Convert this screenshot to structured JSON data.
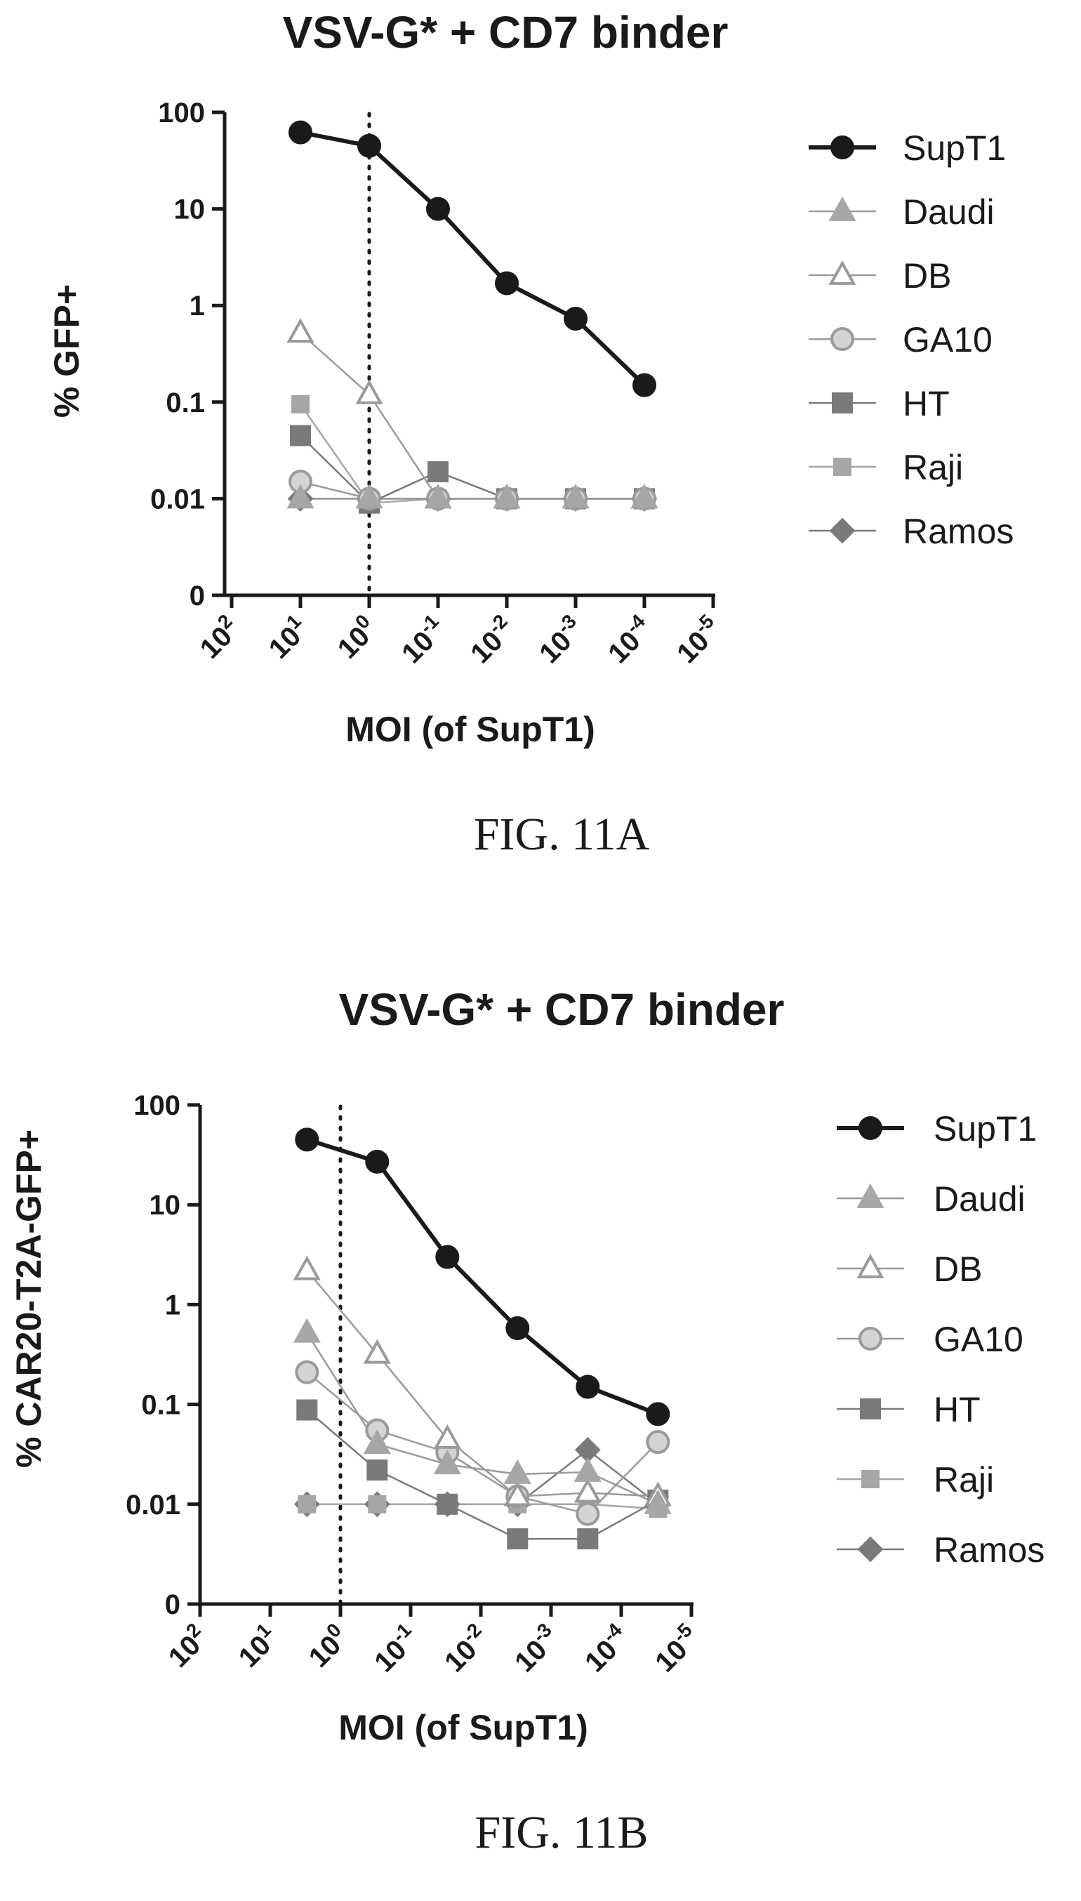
{
  "chart_data": [
    {
      "type": "line",
      "title": "VSV-G* + CD7 binder",
      "xlabel": "MOI (of SupT1)",
      "ylabel": "% GFP+",
      "caption": "FIG. 11A",
      "x_scale": "log",
      "x_reversed": true,
      "x_ticks": [
        "10^2",
        "10^1",
        "10^0",
        "10^-1",
        "10^-2",
        "10^-3",
        "10^-4",
        "10^-5"
      ],
      "x_ticks_value": [
        100,
        10,
        1,
        0.1,
        0.01,
        0.001,
        0.0001,
        1e-05
      ],
      "y_scale": "log",
      "y_ticks": [
        "100",
        "10",
        "1",
        "0.1",
        "0.01",
        "0"
      ],
      "y_ticks_value": [
        100,
        10,
        1,
        0.1,
        0.01,
        0.001
      ],
      "vline_x": 1,
      "legend_position": "right",
      "series": [
        {
          "name": "SupT1",
          "x": [
            10,
            1,
            0.1,
            0.01,
            0.001,
            0.0001
          ],
          "y": [
            62,
            45,
            10,
            1.7,
            0.73,
            0.15
          ]
        },
        {
          "name": "Daudi",
          "x": [
            10,
            1,
            0.1,
            0.01,
            0.001,
            0.0001
          ],
          "y": [
            0.01,
            0.01,
            0.01,
            0.01,
            0.01,
            0.01
          ]
        },
        {
          "name": "DB",
          "x": [
            10,
            1,
            0.1,
            0.01,
            0.001,
            0.0001
          ],
          "y": [
            0.52,
            0.12,
            0.01,
            0.01,
            0.01,
            0.01
          ]
        },
        {
          "name": "GA10",
          "x": [
            10,
            1,
            0.1,
            0.01,
            0.001,
            0.0001
          ],
          "y": [
            0.015,
            0.01,
            0.01,
            0.01,
            0.01,
            0.01
          ]
        },
        {
          "name": "HT",
          "x": [
            10,
            1,
            0.1,
            0.01,
            0.001,
            0.0001
          ],
          "y": [
            0.045,
            0.009,
            0.019,
            0.01,
            0.01,
            0.01
          ]
        },
        {
          "name": "Raji",
          "x": [
            10,
            1,
            0.1,
            0.01,
            0.001,
            0.0001
          ],
          "y": [
            0.095,
            0.009,
            0.01,
            0.01,
            0.01,
            0.01
          ]
        },
        {
          "name": "Ramos",
          "x": [
            10,
            1,
            0.1,
            0.01,
            0.001,
            0.0001
          ],
          "y": [
            0.01,
            0.01,
            0.01,
            0.01,
            0.01,
            0.01
          ]
        }
      ]
    },
    {
      "type": "line",
      "title": "VSV-G* + CD7 binder",
      "xlabel": "MOI (of SupT1)",
      "ylabel": "% CAR20-T2A-GFP+",
      "caption": "FIG. 11B",
      "x_scale": "log",
      "x_reversed": true,
      "x_ticks": [
        "10^2",
        "10^1",
        "10^0",
        "10^-1",
        "10^-2",
        "10^-3",
        "10^-4",
        "10^-5"
      ],
      "x_ticks_value": [
        100,
        10,
        1,
        0.1,
        0.01,
        0.001,
        0.0001,
        1e-05
      ],
      "y_scale": "log",
      "y_ticks": [
        "100",
        "10",
        "1",
        "0.1",
        "0.01",
        "0"
      ],
      "y_ticks_value": [
        100,
        10,
        1,
        0.1,
        0.01,
        0.001
      ],
      "vline_x": 1,
      "legend_position": "right",
      "series": [
        {
          "name": "SupT1",
          "x": [
            3,
            0.3,
            0.03,
            0.003,
            0.0003,
            3e-05
          ],
          "y": [
            45,
            27,
            3,
            0.58,
            0.15,
            0.08
          ]
        },
        {
          "name": "Daudi",
          "x": [
            3,
            0.3,
            0.03,
            0.003,
            0.0003,
            3e-05
          ],
          "y": [
            0.52,
            0.04,
            0.025,
            0.02,
            0.021,
            0.01
          ]
        },
        {
          "name": "DB",
          "x": [
            3,
            0.3,
            0.03,
            0.003,
            0.0003,
            3e-05
          ],
          "y": [
            2.2,
            0.32,
            0.045,
            0.012,
            0.013,
            0.012
          ]
        },
        {
          "name": "GA10",
          "x": [
            3,
            0.3,
            0.03,
            0.003,
            0.0003,
            3e-05
          ],
          "y": [
            0.21,
            0.055,
            0.033,
            0.012,
            0.008,
            0.042
          ]
        },
        {
          "name": "HT",
          "x": [
            3,
            0.3,
            0.03,
            0.003,
            0.0003,
            3e-05
          ],
          "y": [
            0.088,
            0.022,
            0.01,
            0.0045,
            0.0045,
            0.011
          ]
        },
        {
          "name": "Raji",
          "x": [
            3,
            0.3,
            0.03,
            0.003,
            0.0003,
            3e-05
          ],
          "y": [
            0.01,
            0.01,
            0.01,
            0.01,
            0.01,
            0.009
          ]
        },
        {
          "name": "Ramos",
          "x": [
            3,
            0.3,
            0.03,
            0.003,
            0.0003,
            3e-05
          ],
          "y": [
            0.01,
            0.01,
            0.01,
            0.01,
            0.035,
            0.01
          ]
        }
      ]
    }
  ],
  "series_styles": [
    {
      "name": "SupT1",
      "marker": "circle",
      "fill": "#1a1a1a",
      "stroke": "#1a1a1a",
      "line": "#1a1a1a",
      "line_width": "bold"
    },
    {
      "name": "Daudi",
      "marker": "triangle",
      "fill": "#a6a6a6",
      "stroke": "#a6a6a6",
      "line": "#9a9a9a",
      "line_width": "thin"
    },
    {
      "name": "DB",
      "marker": "triangle-open",
      "fill": "#ffffff",
      "stroke": "#9a9a9a",
      "line": "#9a9a9a",
      "line_width": "thin"
    },
    {
      "name": "GA10",
      "marker": "circle-open",
      "fill": "#d4d4d4",
      "stroke": "#9a9a9a",
      "line": "#9a9a9a",
      "line_width": "thin"
    },
    {
      "name": "HT",
      "marker": "square",
      "fill": "#7a7a7a",
      "stroke": "#7a7a7a",
      "line": "#7a7a7a",
      "line_width": "thin"
    },
    {
      "name": "Raji",
      "marker": "square-small",
      "fill": "#a6a6a6",
      "stroke": "#a6a6a6",
      "line": "#a6a6a6",
      "line_width": "thin"
    },
    {
      "name": "Ramos",
      "marker": "diamond",
      "fill": "#7a7a7a",
      "stroke": "#7a7a7a",
      "line": "#7a7a7a",
      "line_width": "thin"
    }
  ]
}
